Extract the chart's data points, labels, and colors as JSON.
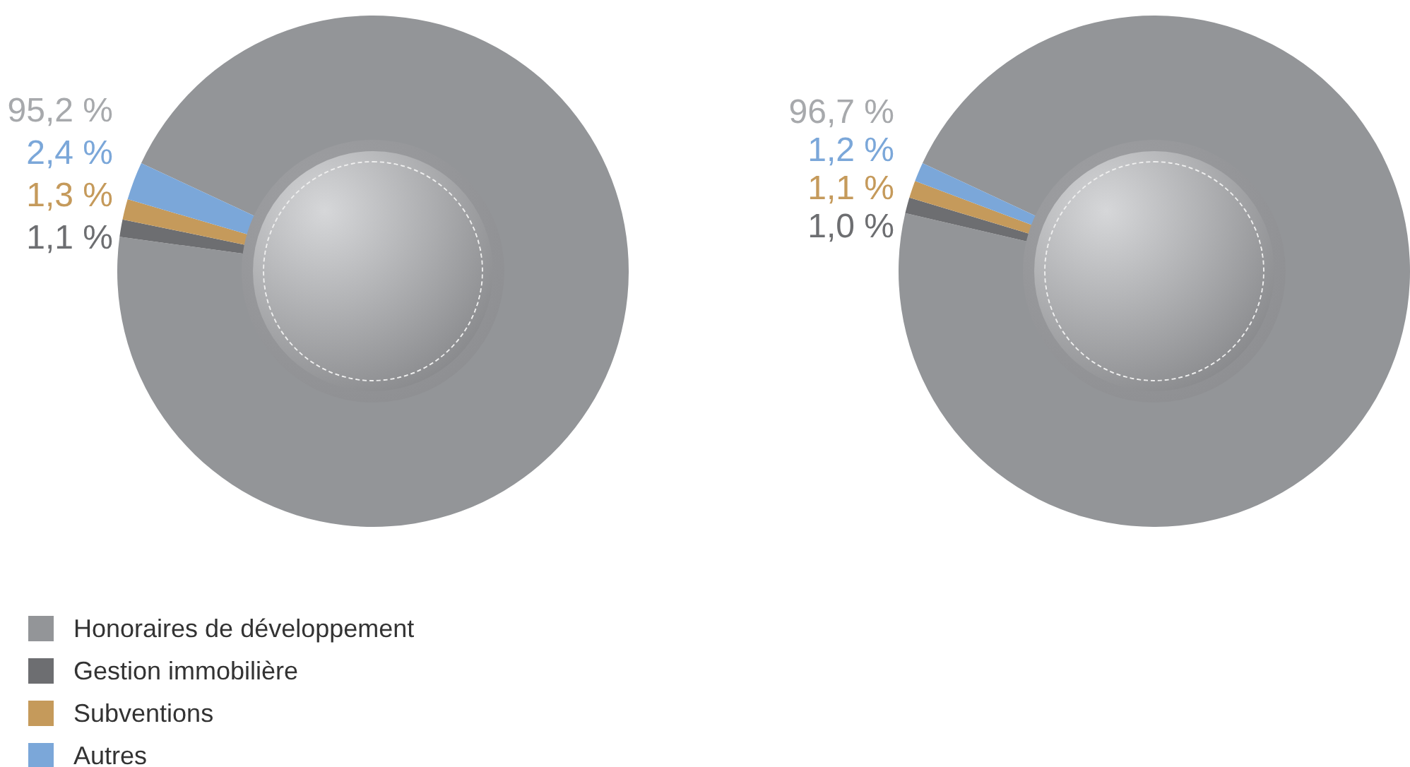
{
  "chart_data": [
    {
      "type": "donut",
      "categories": [
        "Honoraires de développement",
        "Gestion immobilière",
        "Subventions",
        "Autres"
      ],
      "values": [
        95.2,
        1.1,
        1.3,
        2.4
      ],
      "colors": [
        "#939598",
        "#6d6e71",
        "#c59a5b",
        "#7ba7d9"
      ],
      "value_labels": [
        "95,2 %",
        "1,1 %",
        "1,3 %",
        "2,4 %"
      ],
      "legend": "bottom left"
    },
    {
      "type": "donut",
      "categories": [
        null,
        null,
        null,
        null
      ],
      "values": [
        96.7,
        1.0,
        1.1,
        1.2
      ],
      "colors": [
        "#939598",
        "#6d6e71",
        "#c59a5b",
        "#7ba7d9"
      ],
      "value_labels": [
        "96,7 %",
        "1,0 %",
        "1,1 %",
        "1,2 %"
      ]
    }
  ]
}
